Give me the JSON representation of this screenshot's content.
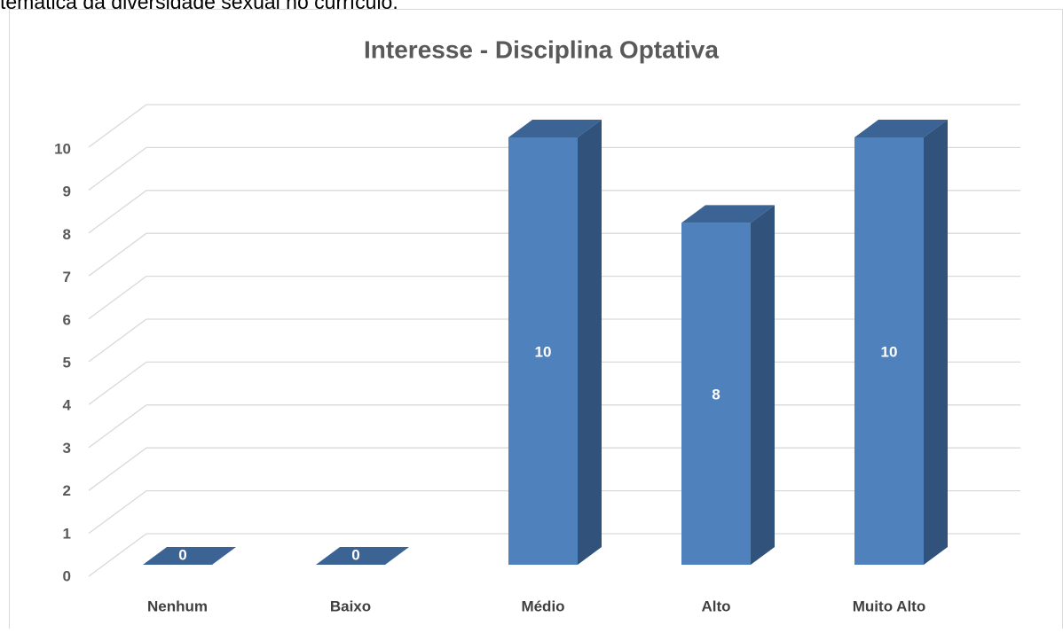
{
  "page_text": "temática da diversidade sexual no currículo.",
  "chart_data": {
    "type": "bar3d",
    "title": "Interesse - Disciplina Optativa",
    "categories": [
      "Nenhum",
      "Baixo",
      "Médio",
      "Alto",
      "Muito Alto"
    ],
    "values": [
      0,
      0,
      10,
      8,
      10
    ],
    "color": "#4f81bd",
    "side_color": "#31527a",
    "top_color": "#3b6495",
    "ylim": [
      0,
      10
    ],
    "yticks": [
      0,
      1,
      2,
      3,
      4,
      5,
      6,
      7,
      8,
      9,
      10
    ],
    "grid": true,
    "data_labels": true
  }
}
